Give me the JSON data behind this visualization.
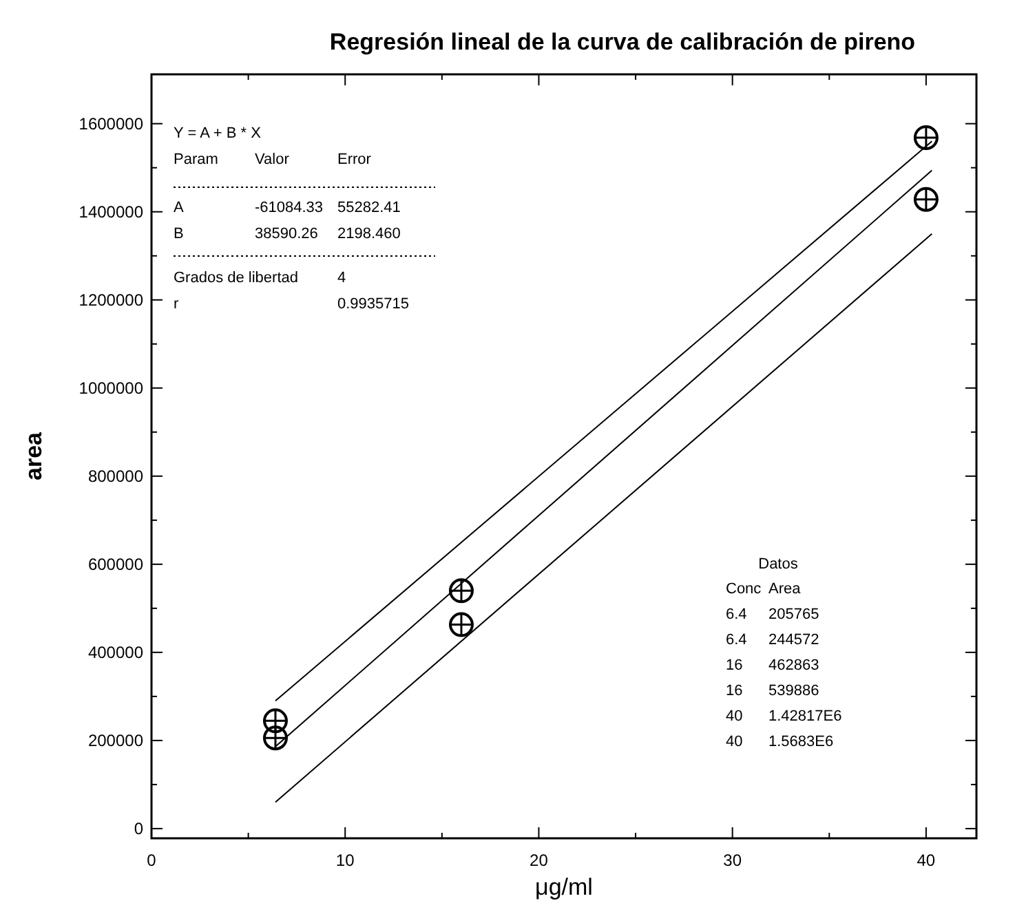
{
  "chart_data": {
    "type": "scatter",
    "title": "Regresión lineal de la curva de calibración de pireno",
    "xlabel": "μg/ml",
    "ylabel": "area",
    "xlim": [
      0,
      42.6
    ],
    "ylim": [
      -22000,
      1712000
    ],
    "xticks": [
      0,
      {
        "value": 5,
        "label": null
      },
      10,
      {
        "value": 15,
        "label": null
      },
      20,
      {
        "value": 25,
        "label": null
      },
      30,
      {
        "value": 35,
        "label": null
      },
      40
    ],
    "yticks": [
      0,
      {
        "value": 100000,
        "label": null
      },
      200000,
      {
        "value": 300000,
        "label": null
      },
      400000,
      {
        "value": 500000,
        "label": null
      },
      600000,
      {
        "value": 700000,
        "label": null
      },
      800000,
      {
        "value": 900000,
        "label": null
      },
      1000000,
      {
        "value": 1100000,
        "label": null
      },
      1200000,
      {
        "value": 1300000,
        "label": null
      },
      1400000,
      {
        "value": 1500000,
        "label": null
      },
      1600000
    ],
    "grid": false,
    "series": [
      {
        "marker": "circle",
        "color": "#000000",
        "x": [
          6.4,
          6.4,
          16,
          16,
          40,
          40
        ],
        "values": [
          205765,
          244572,
          462863,
          539886,
          1428170,
          1568300
        ]
      },
      {
        "type": "line",
        "color": "#000000",
        "line_style": "solid",
        "x": [
          6.4,
          40.3
        ],
        "values": [
          186000,
          1494000
        ],
        "marker": "none"
      },
      {
        "type": "line",
        "color": "#000000",
        "line_style": "solid",
        "x": [
          6.4,
          40.3
        ],
        "values": [
          290000,
          1560000
        ],
        "marker": "none"
      },
      {
        "type": "line",
        "color": "#000000",
        "line_style": "solid",
        "x": [
          6.4,
          40.3
        ],
        "values": [
          60000,
          1350000
        ],
        "marker": "none"
      }
    ],
    "annotations": [
      "Y = A + B * X",
      "Param\tValor\tError",
      "A\t-61084.33\t55282.41",
      "B\t38590.26\t2198.460",
      "Grados de libertad\t\t4",
      "r\t\t0.9935715",
      "Datos",
      "Conc\tArea",
      "6.4\t205765",
      "6.4\t244572",
      "16\t462863",
      "16\t539886",
      "40\t1.42817E6",
      "40\t1.5683E6"
    ]
  }
}
